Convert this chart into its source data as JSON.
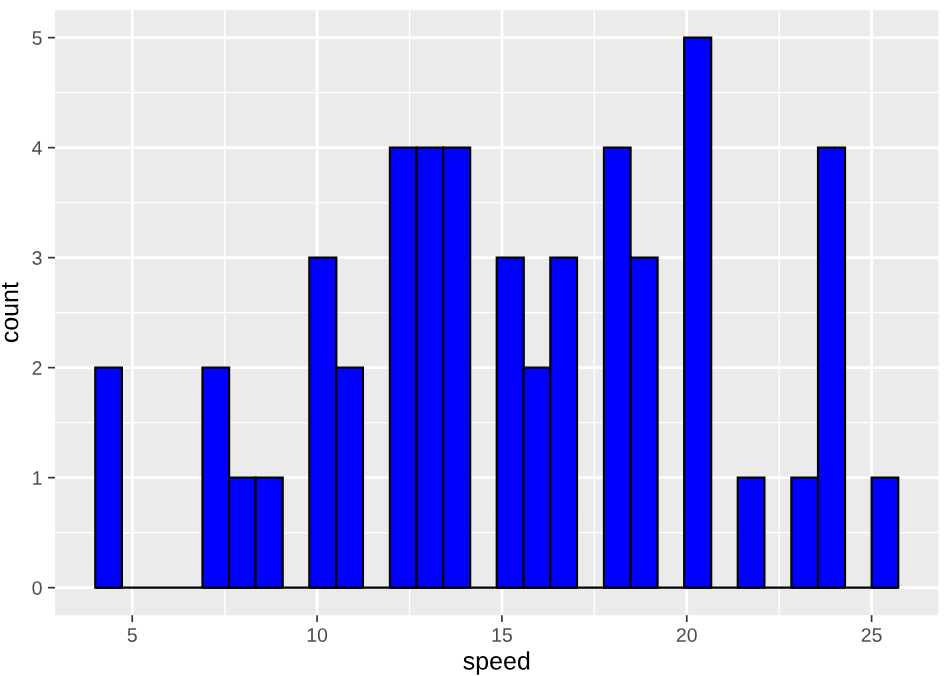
{
  "chart_data": {
    "type": "histogram",
    "xlabel": "speed",
    "ylabel": "count",
    "bins": [
      4.0,
      4.72,
      5.45,
      6.17,
      6.9,
      7.62,
      8.34,
      9.07,
      9.79,
      10.52,
      11.24,
      11.97,
      12.69,
      13.41,
      14.14,
      14.86,
      15.59,
      16.31,
      17.03,
      17.76,
      18.48,
      19.21,
      19.93,
      20.66,
      21.38,
      22.1,
      22.83,
      23.55,
      24.28,
      25.0,
      25.72
    ],
    "values": [
      2,
      0,
      0,
      0,
      2,
      1,
      1,
      0,
      3,
      2,
      0,
      4,
      4,
      4,
      0,
      3,
      2,
      3,
      0,
      4,
      3,
      0,
      5,
      0,
      1,
      0,
      1,
      4,
      0,
      1
    ],
    "color": "#0000ff",
    "xlim": [
      2.91,
      26.81
    ],
    "xticks": [
      5,
      10,
      15,
      20,
      25
    ],
    "ylim": [
      -0.25,
      5.25
    ],
    "yticks": [
      0,
      1,
      2,
      3,
      4,
      5
    ],
    "grid": true
  }
}
